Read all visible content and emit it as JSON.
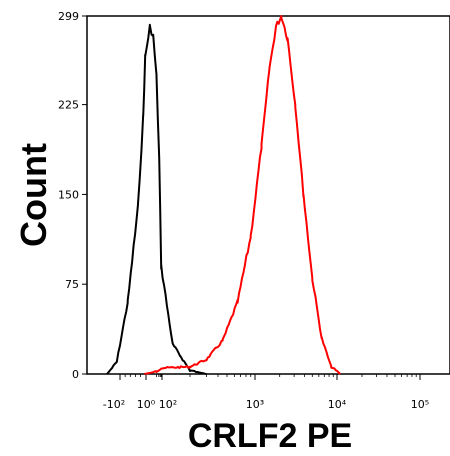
{
  "chart_data": {
    "type": "line",
    "title": "",
    "xlabel": "CRLF2 PE",
    "ylabel": "Count",
    "x_scale": "biexponential",
    "x_tick_labels": [
      "-10²",
      "10⁰",
      "10²",
      "10³",
      "10⁴",
      "10⁵"
    ],
    "x_tick_values": [
      -100,
      1,
      100,
      1000,
      10000,
      100000
    ],
    "ylim": [
      0,
      299
    ],
    "y_ticks": [
      0,
      75,
      150,
      225,
      299
    ],
    "grid": false,
    "legend": "none",
    "series": [
      {
        "color": "#000000",
        "points": [
          [
            -300,
            0
          ],
          [
            -150,
            10
          ],
          [
            -70,
            60
          ],
          [
            -30,
            140
          ],
          [
            -10,
            215
          ],
          [
            -2,
            265
          ],
          [
            3,
            290
          ],
          [
            8,
            282
          ],
          [
            20,
            250
          ],
          [
            45,
            180
          ],
          [
            80,
            90
          ],
          [
            130,
            25
          ],
          [
            200,
            3
          ],
          [
            300,
            0
          ]
        ]
      },
      {
        "color": "#ff0000",
        "points": [
          [
            -5,
            0
          ],
          [
            20,
            2
          ],
          [
            80,
            5
          ],
          [
            200,
            6
          ],
          [
            300,
            12
          ],
          [
            450,
            28
          ],
          [
            650,
            60
          ],
          [
            900,
            115
          ],
          [
            1200,
            190
          ],
          [
            1500,
            255
          ],
          [
            1800,
            290
          ],
          [
            2100,
            299
          ],
          [
            2500,
            280
          ],
          [
            3100,
            225
          ],
          [
            3900,
            150
          ],
          [
            5000,
            80
          ],
          [
            6500,
            30
          ],
          [
            8500,
            6
          ],
          [
            11000,
            0
          ]
        ]
      }
    ]
  }
}
